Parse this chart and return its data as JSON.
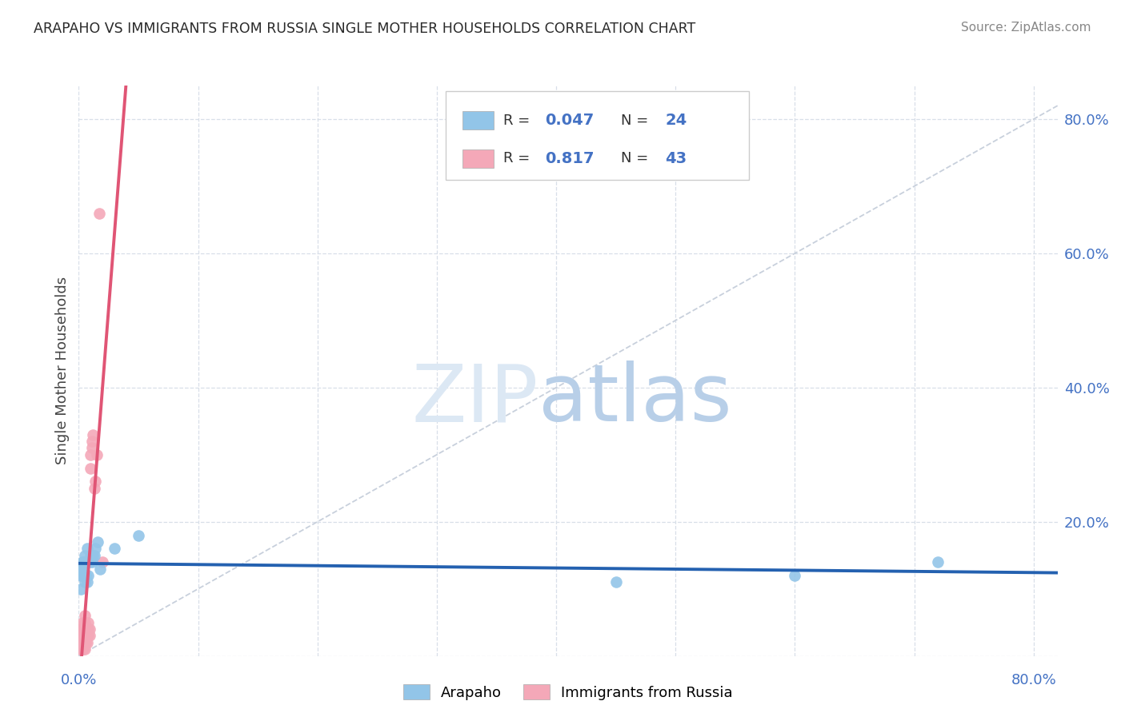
{
  "title": "ARAPAHO VS IMMIGRANTS FROM RUSSIA SINGLE MOTHER HOUSEHOLDS CORRELATION CHART",
  "source": "Source: ZipAtlas.com",
  "ylabel": "Single Mother Households",
  "arapaho_color": "#92c5e8",
  "russia_color": "#f4a8b8",
  "arapaho_line_color": "#2461b0",
  "russia_line_color": "#e05575",
  "diagonal_color": "#c8d0dc",
  "background_color": "#ffffff",
  "grid_color": "#d8dfe8",
  "watermark_zip_color": "#dce8f4",
  "watermark_atlas_color": "#b8cfe8",
  "arapaho_x": [
    0.001,
    0.002,
    0.002,
    0.003,
    0.003,
    0.004,
    0.004,
    0.005,
    0.005,
    0.006,
    0.006,
    0.007,
    0.007,
    0.008,
    0.009,
    0.01,
    0.011,
    0.012,
    0.013,
    0.014,
    0.016,
    0.018,
    0.03,
    0.05,
    0.45,
    0.6,
    0.72
  ],
  "arapaho_y": [
    0.13,
    0.1,
    0.12,
    0.14,
    0.13,
    0.12,
    0.14,
    0.11,
    0.15,
    0.12,
    0.14,
    0.11,
    0.16,
    0.12,
    0.14,
    0.15,
    0.14,
    0.15,
    0.15,
    0.16,
    0.17,
    0.13,
    0.16,
    0.18,
    0.11,
    0.12,
    0.14
  ],
  "russia_x": [
    0.001,
    0.001,
    0.001,
    0.002,
    0.002,
    0.002,
    0.002,
    0.003,
    0.003,
    0.003,
    0.003,
    0.003,
    0.004,
    0.004,
    0.004,
    0.004,
    0.005,
    0.005,
    0.005,
    0.005,
    0.005,
    0.005,
    0.006,
    0.006,
    0.006,
    0.007,
    0.007,
    0.007,
    0.008,
    0.008,
    0.008,
    0.009,
    0.009,
    0.01,
    0.01,
    0.011,
    0.011,
    0.012,
    0.013,
    0.014,
    0.015,
    0.017,
    0.02
  ],
  "russia_y": [
    0.01,
    0.02,
    0.03,
    0.01,
    0.02,
    0.03,
    0.04,
    0.01,
    0.02,
    0.03,
    0.04,
    0.05,
    0.01,
    0.02,
    0.03,
    0.04,
    0.01,
    0.02,
    0.03,
    0.04,
    0.05,
    0.06,
    0.02,
    0.03,
    0.04,
    0.02,
    0.03,
    0.04,
    0.03,
    0.04,
    0.05,
    0.03,
    0.04,
    0.28,
    0.3,
    0.31,
    0.32,
    0.33,
    0.25,
    0.26,
    0.3,
    0.66,
    0.14
  ],
  "xlim": [
    0.0,
    0.82
  ],
  "ylim": [
    0.0,
    0.85
  ],
  "xticklabels": [
    "0.0%",
    "80.0%"
  ],
  "yticklabels_right": [
    "20.0%",
    "40.0%",
    "60.0%",
    "80.0%"
  ],
  "ytick_positions": [
    0.2,
    0.4,
    0.6,
    0.8
  ]
}
